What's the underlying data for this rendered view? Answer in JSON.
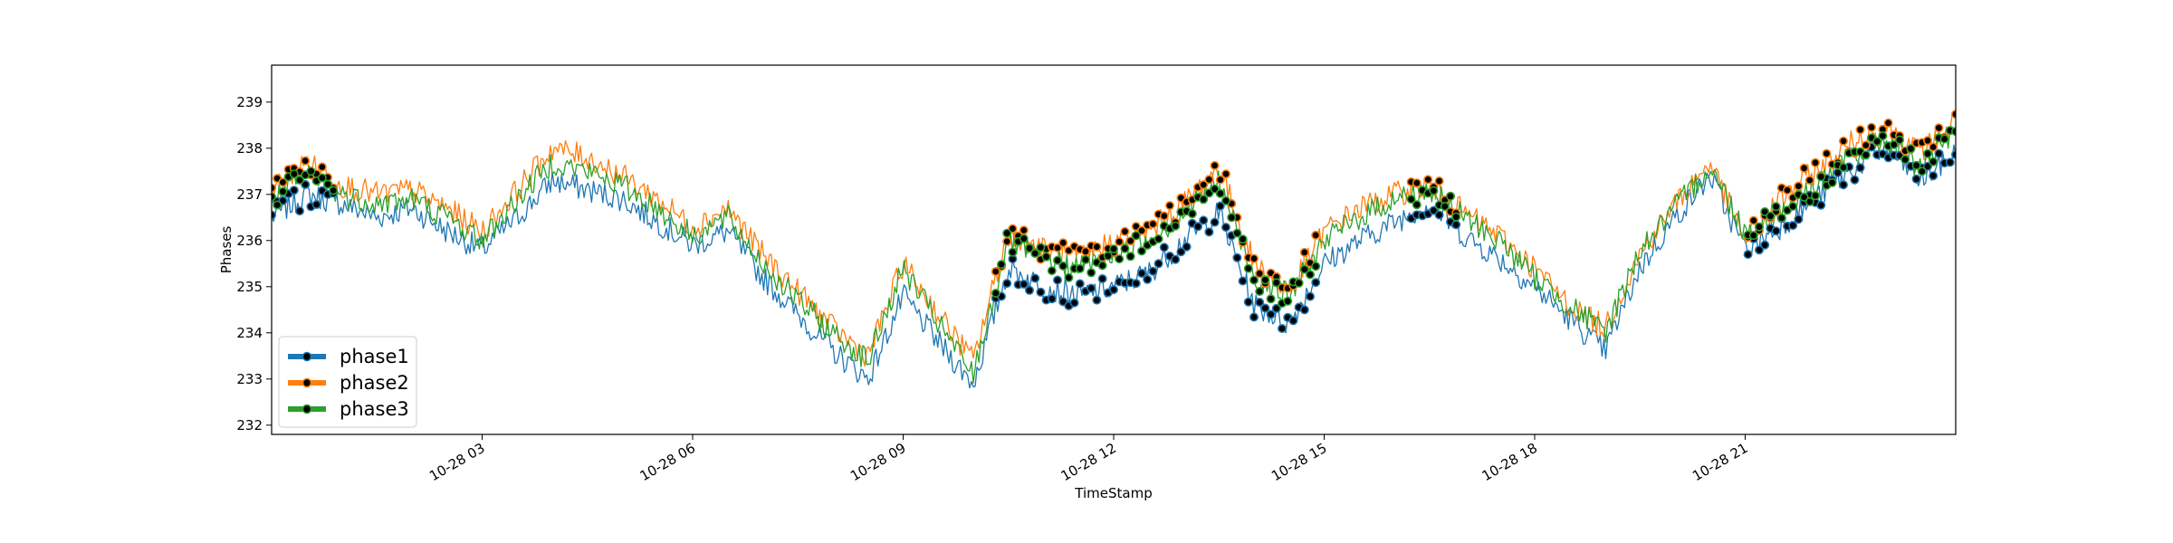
{
  "chart_data": {
    "type": "line",
    "title": "",
    "xlabel": "TimeStamp",
    "ylabel": "Phases",
    "x_range_hours": [
      0.0,
      24.0
    ],
    "ylim": [
      231.8,
      239.8
    ],
    "y_ticks": [
      232,
      233,
      234,
      235,
      236,
      237,
      238,
      239
    ],
    "x_ticks": [
      {
        "hour": 3,
        "label": "10-28 03"
      },
      {
        "hour": 6,
        "label": "10-28 06"
      },
      {
        "hour": 9,
        "label": "10-28 09"
      },
      {
        "hour": 12,
        "label": "10-28 12"
      },
      {
        "hour": 15,
        "label": "10-28 15"
      },
      {
        "hour": 18,
        "label": "10-28 18"
      },
      {
        "hour": 21,
        "label": "10-28 21"
      }
    ],
    "grid": false,
    "legend_position": "lower-left",
    "x_hours": [
      0,
      0.5,
      1,
      1.5,
      2,
      2.5,
      3,
      3.5,
      4,
      4.5,
      5,
      5.5,
      6,
      6.5,
      7,
      7.5,
      8,
      8.5,
      9,
      9.5,
      10,
      10.5,
      11,
      11.5,
      12,
      12.5,
      13,
      13.5,
      14,
      14.5,
      15,
      15.5,
      16,
      16.5,
      17,
      17.5,
      18,
      18.5,
      19,
      19.5,
      20,
      20.5,
      21,
      21.5,
      22,
      22.5,
      23,
      23.5,
      24
    ],
    "series": [
      {
        "name": "phase1",
        "color": "#1f77b4",
        "values": [
          236.5,
          237.0,
          236.8,
          236.5,
          236.7,
          236.2,
          235.8,
          236.5,
          237.3,
          237.1,
          236.9,
          236.4,
          235.9,
          236.2,
          235.2,
          234.4,
          233.6,
          233.0,
          234.8,
          233.8,
          232.9,
          235.4,
          235.0,
          234.8,
          235.0,
          235.3,
          236.0,
          236.6,
          234.6,
          234.2,
          235.5,
          236.0,
          236.4,
          236.8,
          236.1,
          235.6,
          235.0,
          234.3,
          233.6,
          235.4,
          236.5,
          237.4,
          235.8,
          236.3,
          236.9,
          237.5,
          238.0,
          237.3,
          237.9
        ]
      },
      {
        "name": "phase2",
        "color": "#ff7f0e",
        "values": [
          237.1,
          237.7,
          237.2,
          237.0,
          237.1,
          236.7,
          236.2,
          237.1,
          238.0,
          237.8,
          237.4,
          236.9,
          236.3,
          236.7,
          235.7,
          234.9,
          234.1,
          233.5,
          235.5,
          234.4,
          233.4,
          236.2,
          235.8,
          235.6,
          236.0,
          236.2,
          236.8,
          237.6,
          235.5,
          234.9,
          236.2,
          236.7,
          237.0,
          237.2,
          236.6,
          236.1,
          235.4,
          234.6,
          234.1,
          235.7,
          236.8,
          237.7,
          236.0,
          236.9,
          237.5,
          238.1,
          238.5,
          237.9,
          238.6
        ]
      },
      {
        "name": "phase3",
        "color": "#2ca02c",
        "values": [
          236.9,
          237.4,
          237.0,
          236.8,
          236.9,
          236.5,
          236.0,
          236.9,
          237.7,
          237.5,
          237.2,
          236.7,
          236.1,
          236.5,
          235.5,
          234.7,
          234.0,
          233.4,
          235.4,
          234.2,
          233.1,
          236.0,
          235.6,
          235.4,
          235.7,
          236.0,
          236.6,
          237.3,
          235.2,
          234.8,
          236.0,
          236.5,
          236.9,
          237.1,
          236.5,
          236.0,
          235.2,
          234.6,
          234.0,
          235.8,
          236.7,
          237.6,
          236.2,
          236.6,
          237.2,
          237.8,
          238.2,
          237.6,
          238.3
        ]
      }
    ],
    "highlight_markers": {
      "marker_color": "#000000",
      "intervals_hours": [
        [
          0.0,
          0.9
        ],
        [
          10.3,
          14.9
        ],
        [
          16.2,
          16.9
        ],
        [
          21.0,
          24.0
        ]
      ]
    }
  }
}
